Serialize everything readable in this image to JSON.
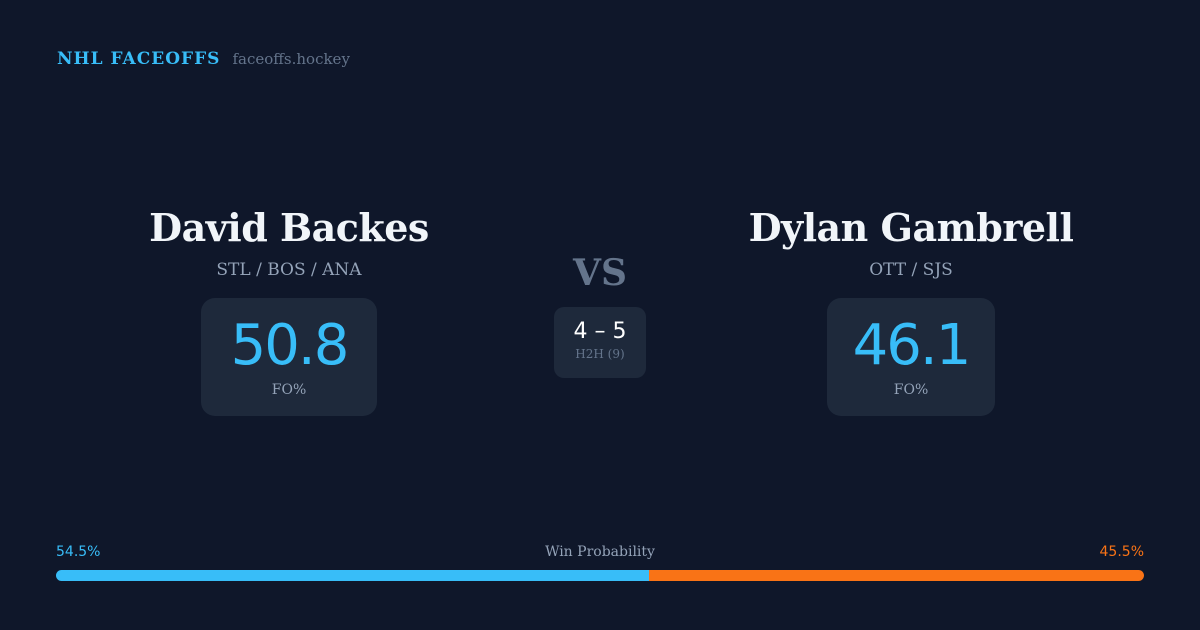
{
  "brand": {
    "title": "NHL FACEOFFS",
    "site": "faceoffs.hockey"
  },
  "player_left": {
    "name": "David Backes",
    "teams": "STL / BOS / ANA",
    "fo_pct": "50.8",
    "fo_label": "FO%"
  },
  "player_right": {
    "name": "Dylan Gambrell",
    "teams": "OTT / SJS",
    "fo_pct": "46.1",
    "fo_label": "FO%"
  },
  "vs": "VS",
  "h2h": {
    "score": "4 – 5",
    "label": "H2H (9)"
  },
  "win_probability": {
    "label": "Win Probability",
    "left": "54.5%",
    "right": "45.5%",
    "left_value": 54.5,
    "right_value": 45.5
  },
  "colors": {
    "left": "#38bdf8",
    "right": "#f97316",
    "background": "#0f172a",
    "card": "#1e293b"
  }
}
